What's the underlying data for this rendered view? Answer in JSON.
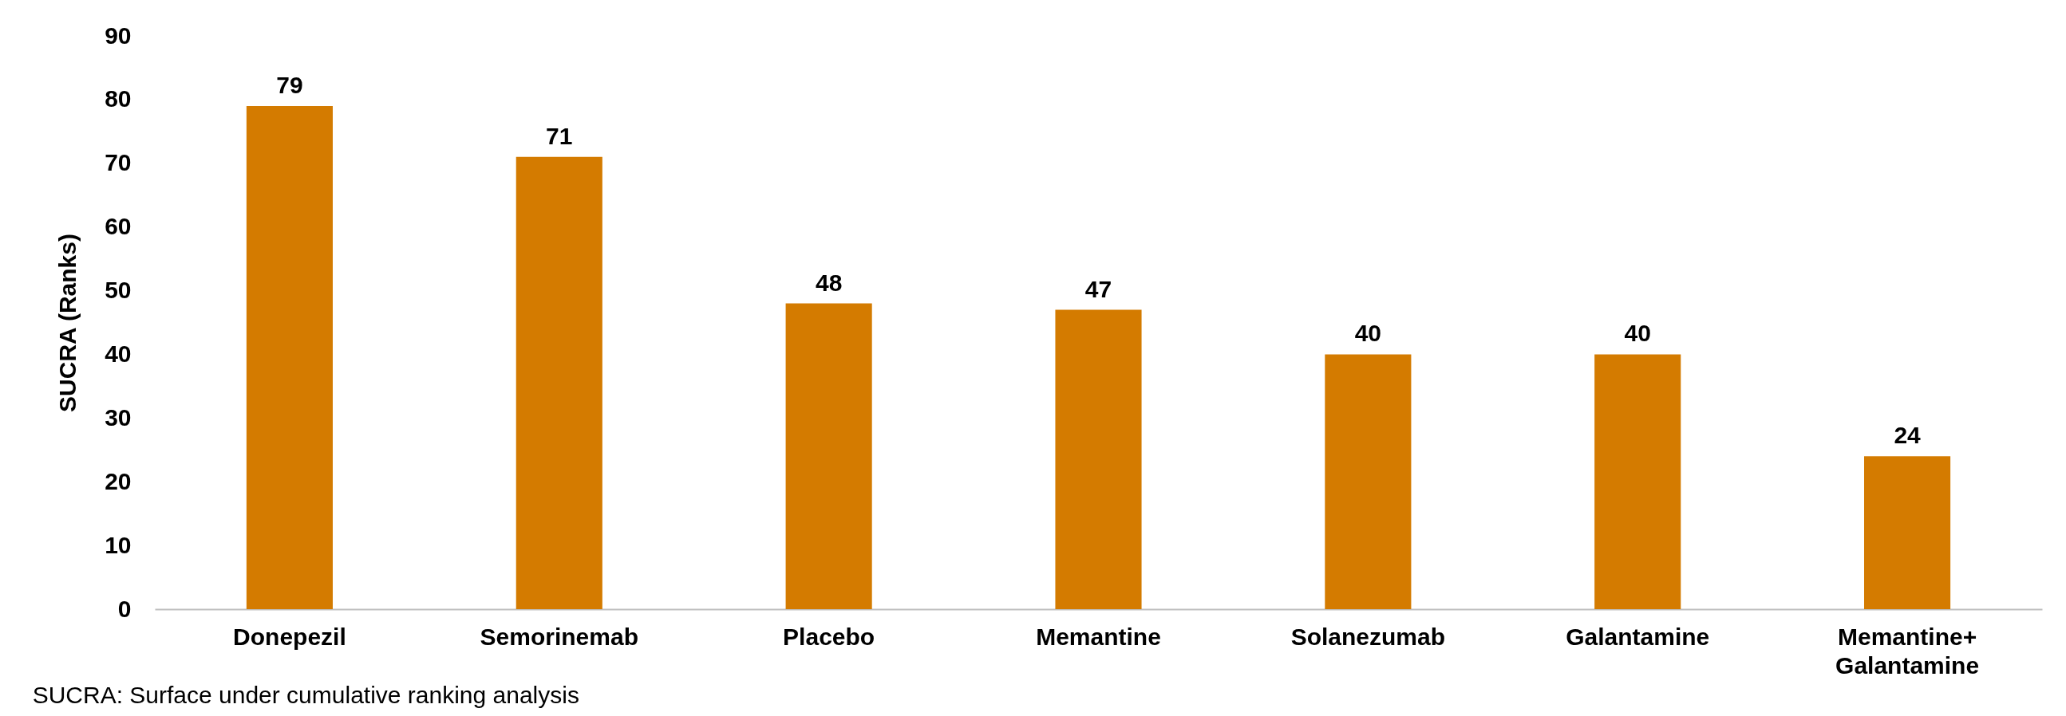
{
  "chart_data": {
    "type": "bar",
    "ylabel": "SUCRA (Ranks)",
    "categories": [
      "Donepezil",
      "Semorinemab",
      "Placebo",
      "Memantine",
      "Solanezumab",
      "Galantamine",
      "Memantine+ Galantamine"
    ],
    "values": [
      79,
      71,
      48,
      47,
      40,
      40,
      24
    ],
    "color": "#d47b00",
    "ylim": [
      0,
      90
    ],
    "yticks": [
      0,
      10,
      20,
      30,
      40,
      50,
      60,
      70,
      80,
      90
    ],
    "grid": false,
    "data_labels": true,
    "annotations": [
      "SUCRA: Surface under cumulative ranking analysis"
    ]
  }
}
